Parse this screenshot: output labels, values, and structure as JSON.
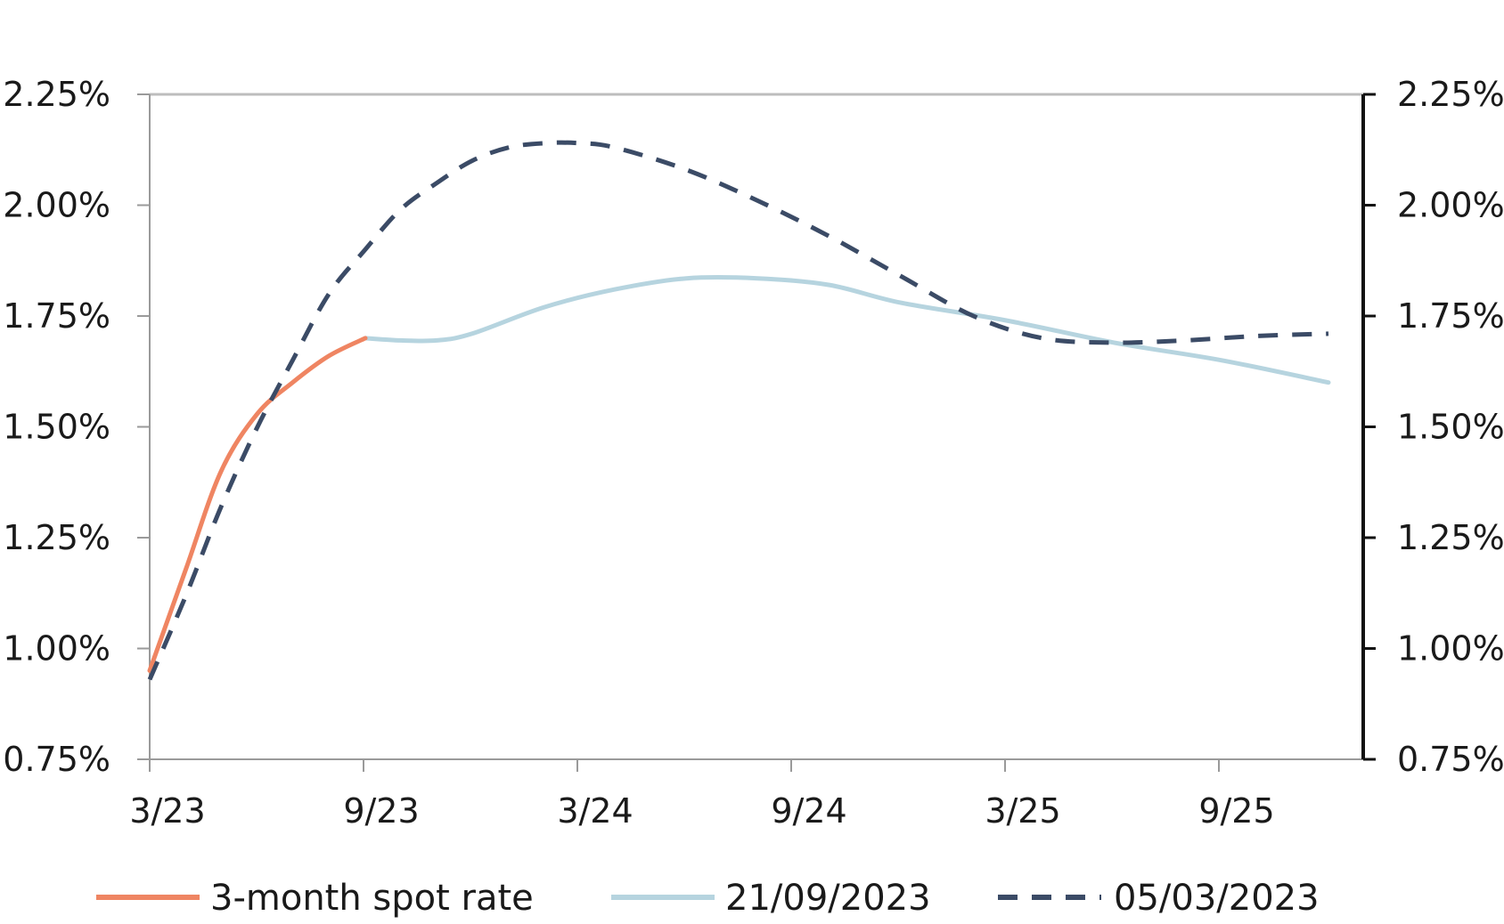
{
  "chart_data": {
    "type": "line",
    "title": "",
    "xlabel": "",
    "ylabel": "",
    "x_ticks": [
      "3/23",
      "9/23",
      "3/24",
      "9/24",
      "3/25",
      "9/25"
    ],
    "y_ticks": [
      "0.75%",
      "1.00%",
      "1.25%",
      "1.50%",
      "1.75%",
      "2.00%",
      "2.25%"
    ],
    "ylim": [
      0.75,
      2.25
    ],
    "y_unit": "%",
    "secondary_y_axis": true,
    "grid": false,
    "legend_position": "bottom",
    "series": [
      {
        "name": "3-month spot rate",
        "color": "#ef8562",
        "style": "solid",
        "points": [
          [
            "2023-03-01",
            0.95
          ],
          [
            "2023-04-01",
            1.18
          ],
          [
            "2023-05-01",
            1.4
          ],
          [
            "2023-06-01",
            1.53
          ],
          [
            "2023-07-01",
            1.6
          ],
          [
            "2023-08-01",
            1.66
          ],
          [
            "2023-09-01",
            1.7
          ]
        ]
      },
      {
        "name": "21/09/2023",
        "color": "#b6d4df",
        "style": "solid",
        "points": [
          [
            "2023-09-01",
            1.7
          ],
          [
            "2023-10-01",
            1.695
          ],
          [
            "2023-11-01",
            1.695
          ],
          [
            "2023-12-01",
            1.71
          ],
          [
            "2024-02-01",
            1.77
          ],
          [
            "2024-04-01",
            1.81
          ],
          [
            "2024-06-01",
            1.835
          ],
          [
            "2024-08-01",
            1.835
          ],
          [
            "2024-10-01",
            1.82
          ],
          [
            "2024-12-01",
            1.78
          ],
          [
            "2025-03-01",
            1.74
          ],
          [
            "2025-06-01",
            1.69
          ],
          [
            "2025-09-01",
            1.65
          ],
          [
            "2025-12-01",
            1.6
          ]
        ]
      },
      {
        "name": "05/03/2023",
        "color": "#3b4b66",
        "style": "dashed",
        "points": [
          [
            "2023-03-01",
            0.93
          ],
          [
            "2023-04-01",
            1.12
          ],
          [
            "2023-05-01",
            1.32
          ],
          [
            "2023-06-01",
            1.5
          ],
          [
            "2023-07-01",
            1.65
          ],
          [
            "2023-08-01",
            1.8
          ],
          [
            "2023-09-01",
            1.9
          ],
          [
            "2023-10-01",
            1.99
          ],
          [
            "2023-11-01",
            2.05
          ],
          [
            "2023-12-01",
            2.1
          ],
          [
            "2024-01-01",
            2.13
          ],
          [
            "2024-02-01",
            2.14
          ],
          [
            "2024-03-01",
            2.14
          ],
          [
            "2024-04-01",
            2.13
          ],
          [
            "2024-06-01",
            2.08
          ],
          [
            "2024-08-01",
            2.01
          ],
          [
            "2024-10-01",
            1.93
          ],
          [
            "2024-12-01",
            1.84
          ],
          [
            "2025-02-01",
            1.75
          ],
          [
            "2025-04-01",
            1.7
          ],
          [
            "2025-06-01",
            1.69
          ],
          [
            "2025-08-01",
            1.695
          ],
          [
            "2025-10-01",
            1.705
          ],
          [
            "2025-12-01",
            1.71
          ]
        ]
      }
    ]
  }
}
